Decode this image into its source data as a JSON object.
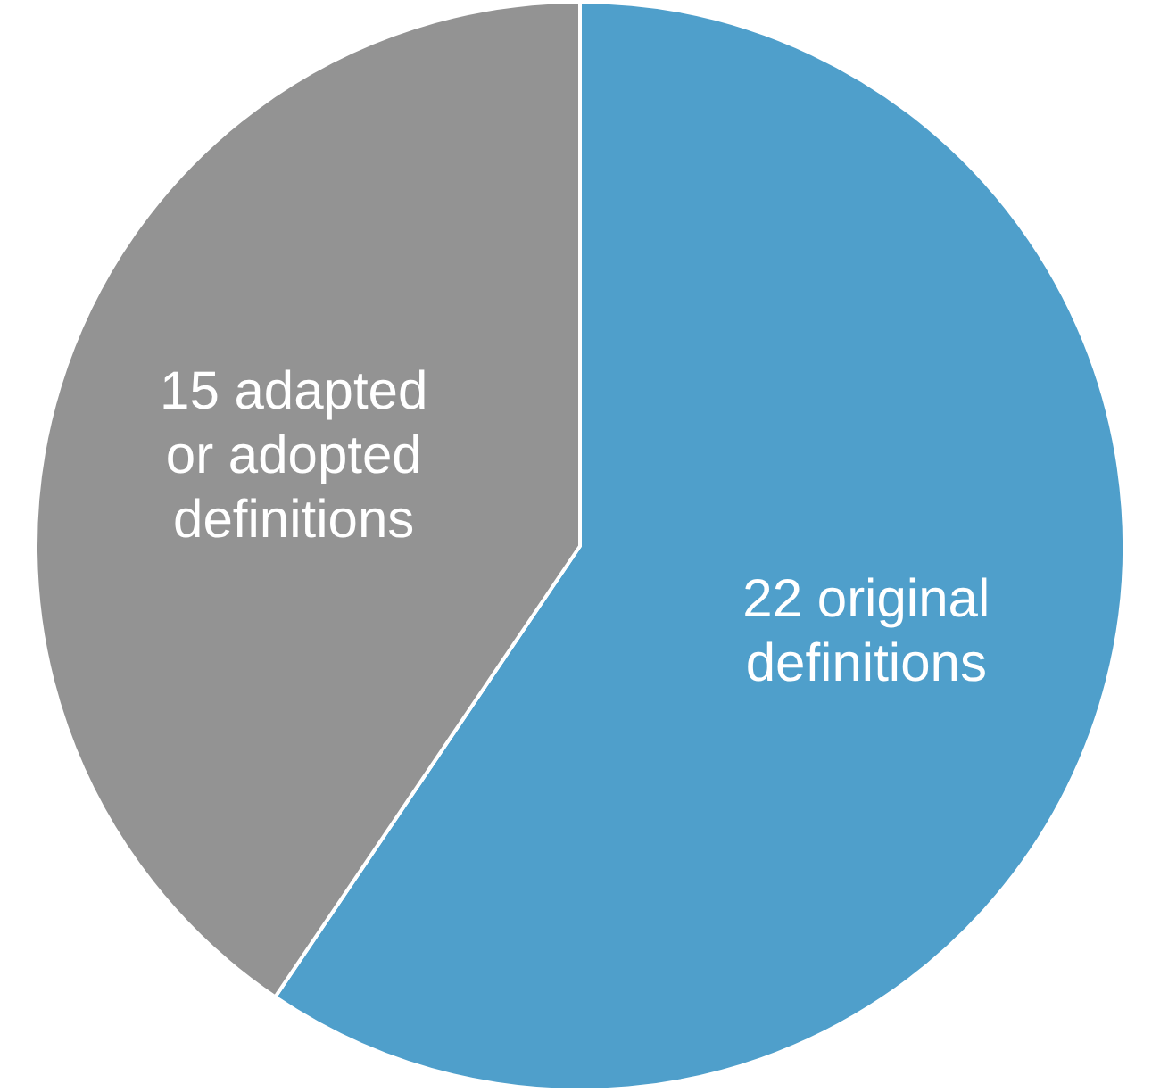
{
  "chart_data": {
    "type": "pie",
    "categories": [
      "22 original definitions",
      "15 adapted or adopted definitions"
    ],
    "values": [
      22,
      15
    ],
    "colors": [
      "#4f9fcb",
      "#939393"
    ],
    "legend": false
  }
}
